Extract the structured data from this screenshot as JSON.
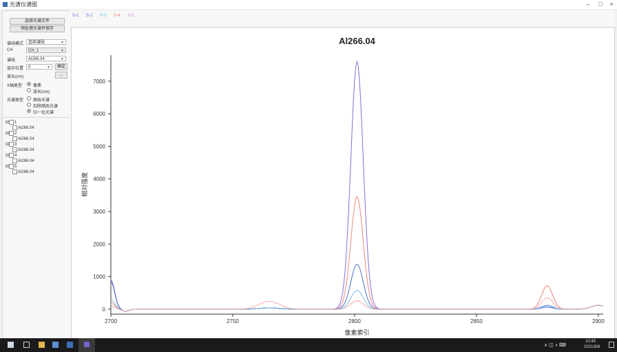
{
  "window": {
    "title": "光谱仪谱图",
    "minimize": "–",
    "maximize": "□",
    "close": "×"
  },
  "left_panel": {
    "buttons": {
      "open": "选择光谱文件",
      "prepare": "预处理光谱并保存"
    },
    "fields": [
      {
        "label": "谱线模式",
        "value": "连续谱段"
      },
      {
        "label": "CH",
        "value": "CH_1"
      },
      {
        "label": "谱线",
        "value": "Al266.04"
      },
      {
        "label": "选中位置",
        "value": "0"
      },
      {
        "label": "波长(nm)",
        "value": ""
      }
    ],
    "side_button_1": "确定",
    "side_button_2": "...",
    "x_group": {
      "label": "X轴类型",
      "options": [
        {
          "text": "像素",
          "on": true
        },
        {
          "text": "波长(nm)",
          "on": false
        }
      ]
    },
    "display_group": {
      "label": "光谱类型",
      "options": [
        {
          "text": "原始光谱",
          "on": false
        },
        {
          "text": "扣除暗底光谱",
          "on": false
        },
        {
          "text": "归一化光谱",
          "on": true
        }
      ]
    },
    "tree": [
      {
        "text": "1",
        "child": "Al266.04"
      },
      {
        "text": "2",
        "child": "Al266.04"
      },
      {
        "text": "3",
        "child": "Al266.04"
      },
      {
        "text": "4",
        "child": "Al266.04"
      },
      {
        "text": "5",
        "child": "Al266.04"
      }
    ]
  },
  "tabs": [
    {
      "label": "S-1",
      "color": "#7b5bd6"
    },
    {
      "label": "S-2",
      "color": "#4f79d8"
    },
    {
      "label": "S-3",
      "color": "#69b8e0"
    },
    {
      "label": "S-4",
      "color": "#e67c70"
    },
    {
      "label": "S-5",
      "color": "#d68ac9"
    }
  ],
  "taskbar": {
    "time": "10:45",
    "date": "2021/6/8"
  },
  "chart_data": {
    "type": "line",
    "title": "Al266.04",
    "xlabel": "像素索引",
    "ylabel": "相对强度",
    "xlim": [
      2700,
      2902
    ],
    "ylim": [
      -150,
      7800
    ],
    "xticks": [
      2700,
      2750,
      2800,
      2850,
      2900
    ],
    "yticks": [
      0,
      1000,
      2000,
      3000,
      4000,
      5000,
      6000,
      7000
    ],
    "series": [
      {
        "color": "#7b5bd6",
        "peak": 7600,
        "edge_y": 900,
        "side_peak": 60
      },
      {
        "color": "#e67c70",
        "peak": 3450,
        "edge_y": 200,
        "side_peak": 720
      },
      {
        "color": "#3b5fc4",
        "peak": 1380,
        "edge_y": 850,
        "side_peak": 120
      },
      {
        "color": "#69b8e0",
        "peak": 580,
        "edge_y": 300,
        "side_peak": 80
      },
      {
        "color": "#f0a0a0",
        "peak": 260,
        "edge_y": 100,
        "side_peak": 350
      }
    ]
  }
}
